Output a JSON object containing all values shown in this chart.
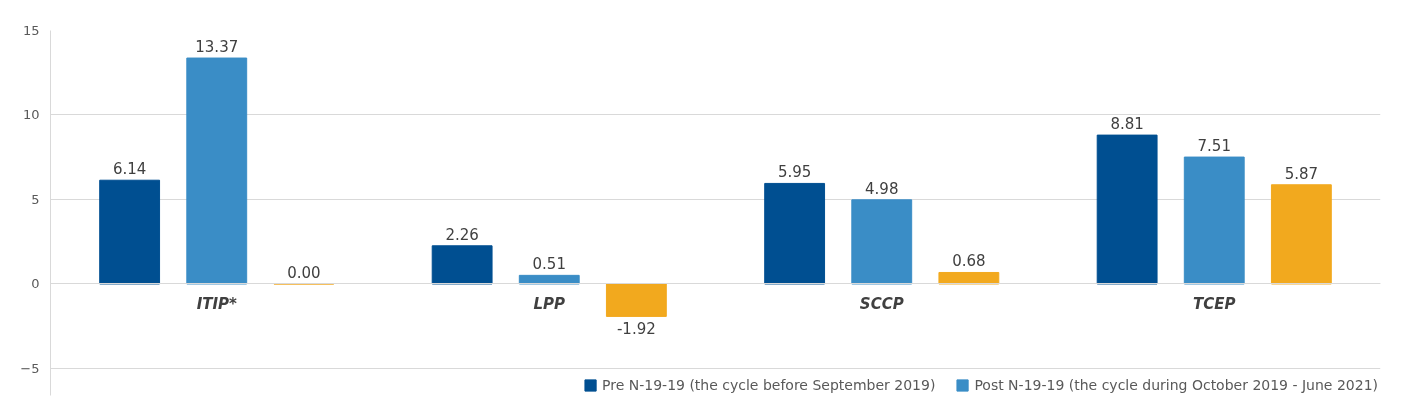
{
  "chart_data": {
    "type": "bar",
    "categories": [
      "ITIP*",
      "LPP",
      "SCCP",
      "TCEP"
    ],
    "series": [
      {
        "name": "Pre N-19-19 (the cycle before September 2019)",
        "color": "#004f91",
        "values": [
          6.14,
          2.26,
          5.95,
          8.81
        ],
        "value_labels": [
          "6.14",
          "2.26",
          "5.95",
          "8.81"
        ]
      },
      {
        "name": "Post N-19-19 (the cycle during October 2019 - June 2021)",
        "color": "#3a8dc6",
        "values": [
          13.37,
          0.51,
          4.98,
          7.51
        ],
        "value_labels": [
          "13.37",
          "0.51",
          "4.98",
          "7.51"
        ]
      },
      {
        "color": "#f2a91e",
        "values": [
          0.0,
          -1.92,
          0.68,
          5.87
        ],
        "value_labels": [
          "0.00",
          "-1.92",
          "0.68",
          "5.87"
        ]
      }
    ],
    "ylim": [
      -6.6,
      15
    ],
    "yticks": [
      -5,
      0,
      5,
      10,
      15
    ],
    "grid": "y",
    "legend": "bottom"
  }
}
